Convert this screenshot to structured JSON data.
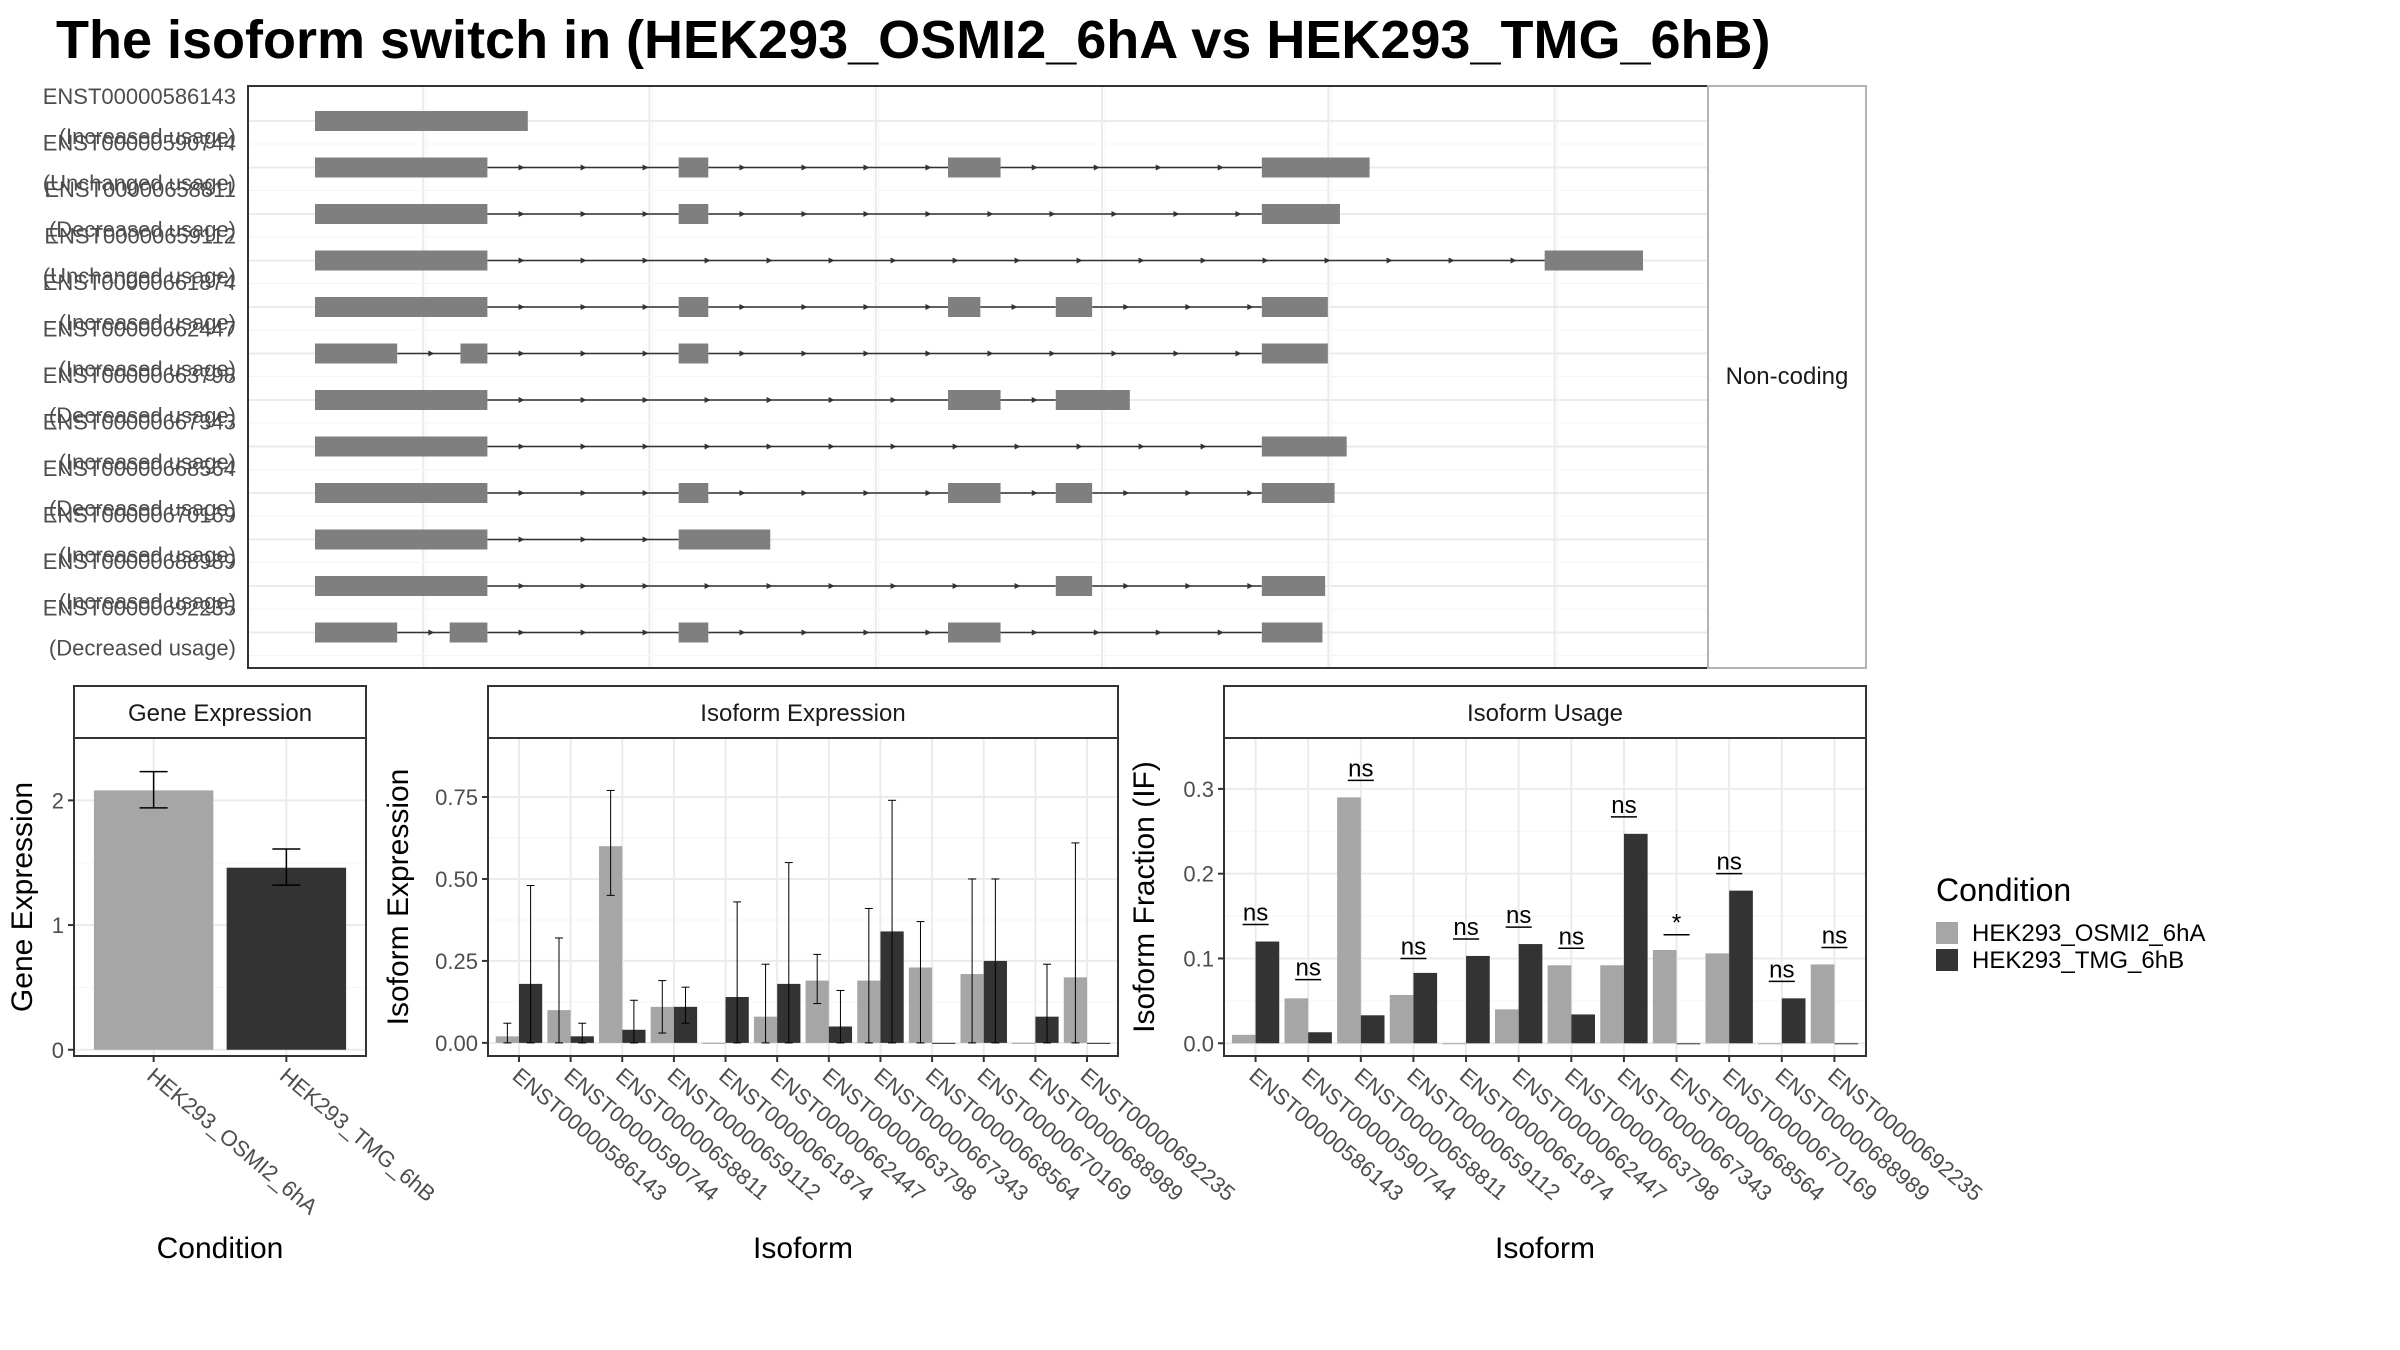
{
  "title": "The isoform switch in  (HEK293_OSMI2_6hA vs HEK293_TMG_6hB)",
  "colors": {
    "HEK293_OSMI2_6hA": "#a6a6a6",
    "HEK293_TMG_6hB": "#333333",
    "exon": "#7f7f7f",
    "grid": "#ebebeb",
    "panel_border": "#333333",
    "strip_bg": "#ffffff"
  },
  "legend": {
    "title": "Condition",
    "items": [
      "HEK293_OSMI2_6hA",
      "HEK293_TMG_6hB"
    ],
    "placement": "right"
  },
  "chart_data": [
    {
      "type": "transcript_structure",
      "coding_facet_label": "Non-coding",
      "transcripts": [
        {
          "id": "ENST00000586143",
          "usage": "(Increased usage)",
          "exons": [
            [
              0,
              158
            ]
          ]
        },
        {
          "id": "ENST00000590744",
          "usage": "(Unchanged usage)",
          "exons": [
            [
              0,
              128
            ],
            [
              270,
              292
            ],
            [
              470,
              509
            ],
            [
              703,
              783
            ]
          ]
        },
        {
          "id": "ENST00000658811",
          "usage": "(Decreased usage)",
          "exons": [
            [
              0,
              128
            ],
            [
              270,
              292
            ],
            [
              703,
              761
            ]
          ]
        },
        {
          "id": "ENST00000659112",
          "usage": "(Unchanged usage)",
          "exons": [
            [
              0,
              128
            ],
            [
              913,
              986
            ]
          ]
        },
        {
          "id": "ENST00000661874",
          "usage": "(Increased usage)",
          "exons": [
            [
              0,
              128
            ],
            [
              270,
              292
            ],
            [
              470,
              494
            ],
            [
              550,
              577
            ],
            [
              703,
              752
            ]
          ]
        },
        {
          "id": "ENST00000662447",
          "usage": "(Increased usage)",
          "exons": [
            [
              0,
              61
            ],
            [
              108,
              128
            ],
            [
              270,
              292
            ],
            [
              703,
              752
            ]
          ]
        },
        {
          "id": "ENST00000663798",
          "usage": "(Decreased usage)",
          "exons": [
            [
              0,
              128
            ],
            [
              470,
              509
            ],
            [
              550,
              605
            ]
          ]
        },
        {
          "id": "ENST00000667343",
          "usage": "(Increased usage)",
          "exons": [
            [
              0,
              128
            ],
            [
              703,
              766
            ]
          ]
        },
        {
          "id": "ENST00000668564",
          "usage": "(Decreased usage)",
          "exons": [
            [
              0,
              128
            ],
            [
              270,
              292
            ],
            [
              470,
              509
            ],
            [
              550,
              577
            ],
            [
              703,
              757
            ]
          ]
        },
        {
          "id": "ENST00000670169",
          "usage": "(Increased usage)",
          "exons": [
            [
              0,
              128
            ],
            [
              270,
              338
            ]
          ]
        },
        {
          "id": "ENST00000688989",
          "usage": "(Increased usage)",
          "exons": [
            [
              0,
              128
            ],
            [
              550,
              577
            ],
            [
              703,
              750
            ]
          ]
        },
        {
          "id": "ENST00000692235",
          "usage": "(Decreased usage)",
          "exons": [
            [
              0,
              61
            ],
            [
              100,
              128
            ],
            [
              270,
              292
            ],
            [
              470,
              509
            ],
            [
              703,
              748
            ]
          ]
        }
      ]
    },
    {
      "type": "bar",
      "strip": "Gene Expression",
      "xlabel": "Condition",
      "ylabel": "Gene Expression",
      "ylim": [
        -0.05,
        2.5
      ],
      "yticks": [
        0,
        1,
        2
      ],
      "categories": [
        "HEK293_OSMI2_6hA",
        "HEK293_TMG_6hB"
      ],
      "values": [
        2.08,
        1.46
      ],
      "error_low": [
        1.94,
        1.32
      ],
      "error_high": [
        2.23,
        1.61
      ]
    },
    {
      "type": "bar",
      "strip": "Isoform Expression",
      "xlabel": "Isoform",
      "ylabel": "Isoform Expression",
      "ylim": [
        -0.04,
        0.93
      ],
      "yticks": [
        "0.00",
        "0.25",
        "0.50",
        "0.75"
      ],
      "categories": [
        "ENST00000586143",
        "ENST00000590744",
        "ENST00000658811",
        "ENST00000659112",
        "ENST00000661874",
        "ENST00000662447",
        "ENST00000663798",
        "ENST00000667343",
        "ENST00000668564",
        "ENST00000670169",
        "ENST00000688989",
        "ENST00000692235"
      ],
      "series": [
        {
          "name": "HEK293_OSMI2_6hA",
          "values": [
            0.02,
            0.1,
            0.6,
            0.11,
            0.0,
            0.08,
            0.19,
            0.19,
            0.23,
            0.21,
            0.0,
            0.2
          ],
          "error_low": [
            0.0,
            0.0,
            0.45,
            0.03,
            0.0,
            0.0,
            0.12,
            0.0,
            0.0,
            0.0,
            0.0,
            0.0
          ],
          "error_high": [
            0.06,
            0.32,
            0.77,
            0.19,
            0.0,
            0.24,
            0.27,
            0.41,
            0.37,
            0.5,
            0.0,
            0.61
          ]
        },
        {
          "name": "HEK293_TMG_6hB",
          "values": [
            0.18,
            0.02,
            0.04,
            0.11,
            0.14,
            0.18,
            0.05,
            0.34,
            0.0,
            0.25,
            0.08,
            0.0
          ],
          "error_low": [
            0.0,
            0.0,
            0.0,
            0.06,
            0.0,
            0.0,
            0.0,
            0.0,
            0.0,
            0.0,
            0.0,
            0.0
          ],
          "error_high": [
            0.48,
            0.06,
            0.13,
            0.17,
            0.43,
            0.55,
            0.16,
            0.74,
            0.0,
            0.5,
            0.24,
            0.0
          ]
        }
      ]
    },
    {
      "type": "bar",
      "strip": "Isoform Usage",
      "xlabel": "Isoform",
      "ylabel": "Isoform Fraction (IF)",
      "ylim": [
        -0.015,
        0.36
      ],
      "yticks": [
        "0.0",
        "0.1",
        "0.2",
        "0.3"
      ],
      "categories": [
        "ENST00000586143",
        "ENST00000590744",
        "ENST00000658811",
        "ENST00000659112",
        "ENST00000661874",
        "ENST00000662447",
        "ENST00000663798",
        "ENST00000667343",
        "ENST00000668564",
        "ENST00000670169",
        "ENST00000688989",
        "ENST00000692235"
      ],
      "series": [
        {
          "name": "HEK293_OSMI2_6hA",
          "values": [
            0.01,
            0.053,
            0.29,
            0.057,
            0.0,
            0.04,
            0.092,
            0.092,
            0.11,
            0.106,
            0.0,
            0.093
          ]
        },
        {
          "name": "HEK293_TMG_6hB",
          "values": [
            0.12,
            0.013,
            0.033,
            0.083,
            0.103,
            0.117,
            0.034,
            0.247,
            0.0,
            0.18,
            0.053,
            0.0
          ]
        }
      ],
      "significance": [
        "ns",
        "ns",
        "ns",
        "ns",
        "ns",
        "ns",
        "ns",
        "ns",
        "*",
        "ns",
        "ns",
        "ns"
      ],
      "significance_y": [
        0.14,
        0.075,
        0.31,
        0.1,
        0.123,
        0.137,
        0.112,
        0.267,
        0.128,
        0.2,
        0.073,
        0.113
      ]
    }
  ]
}
